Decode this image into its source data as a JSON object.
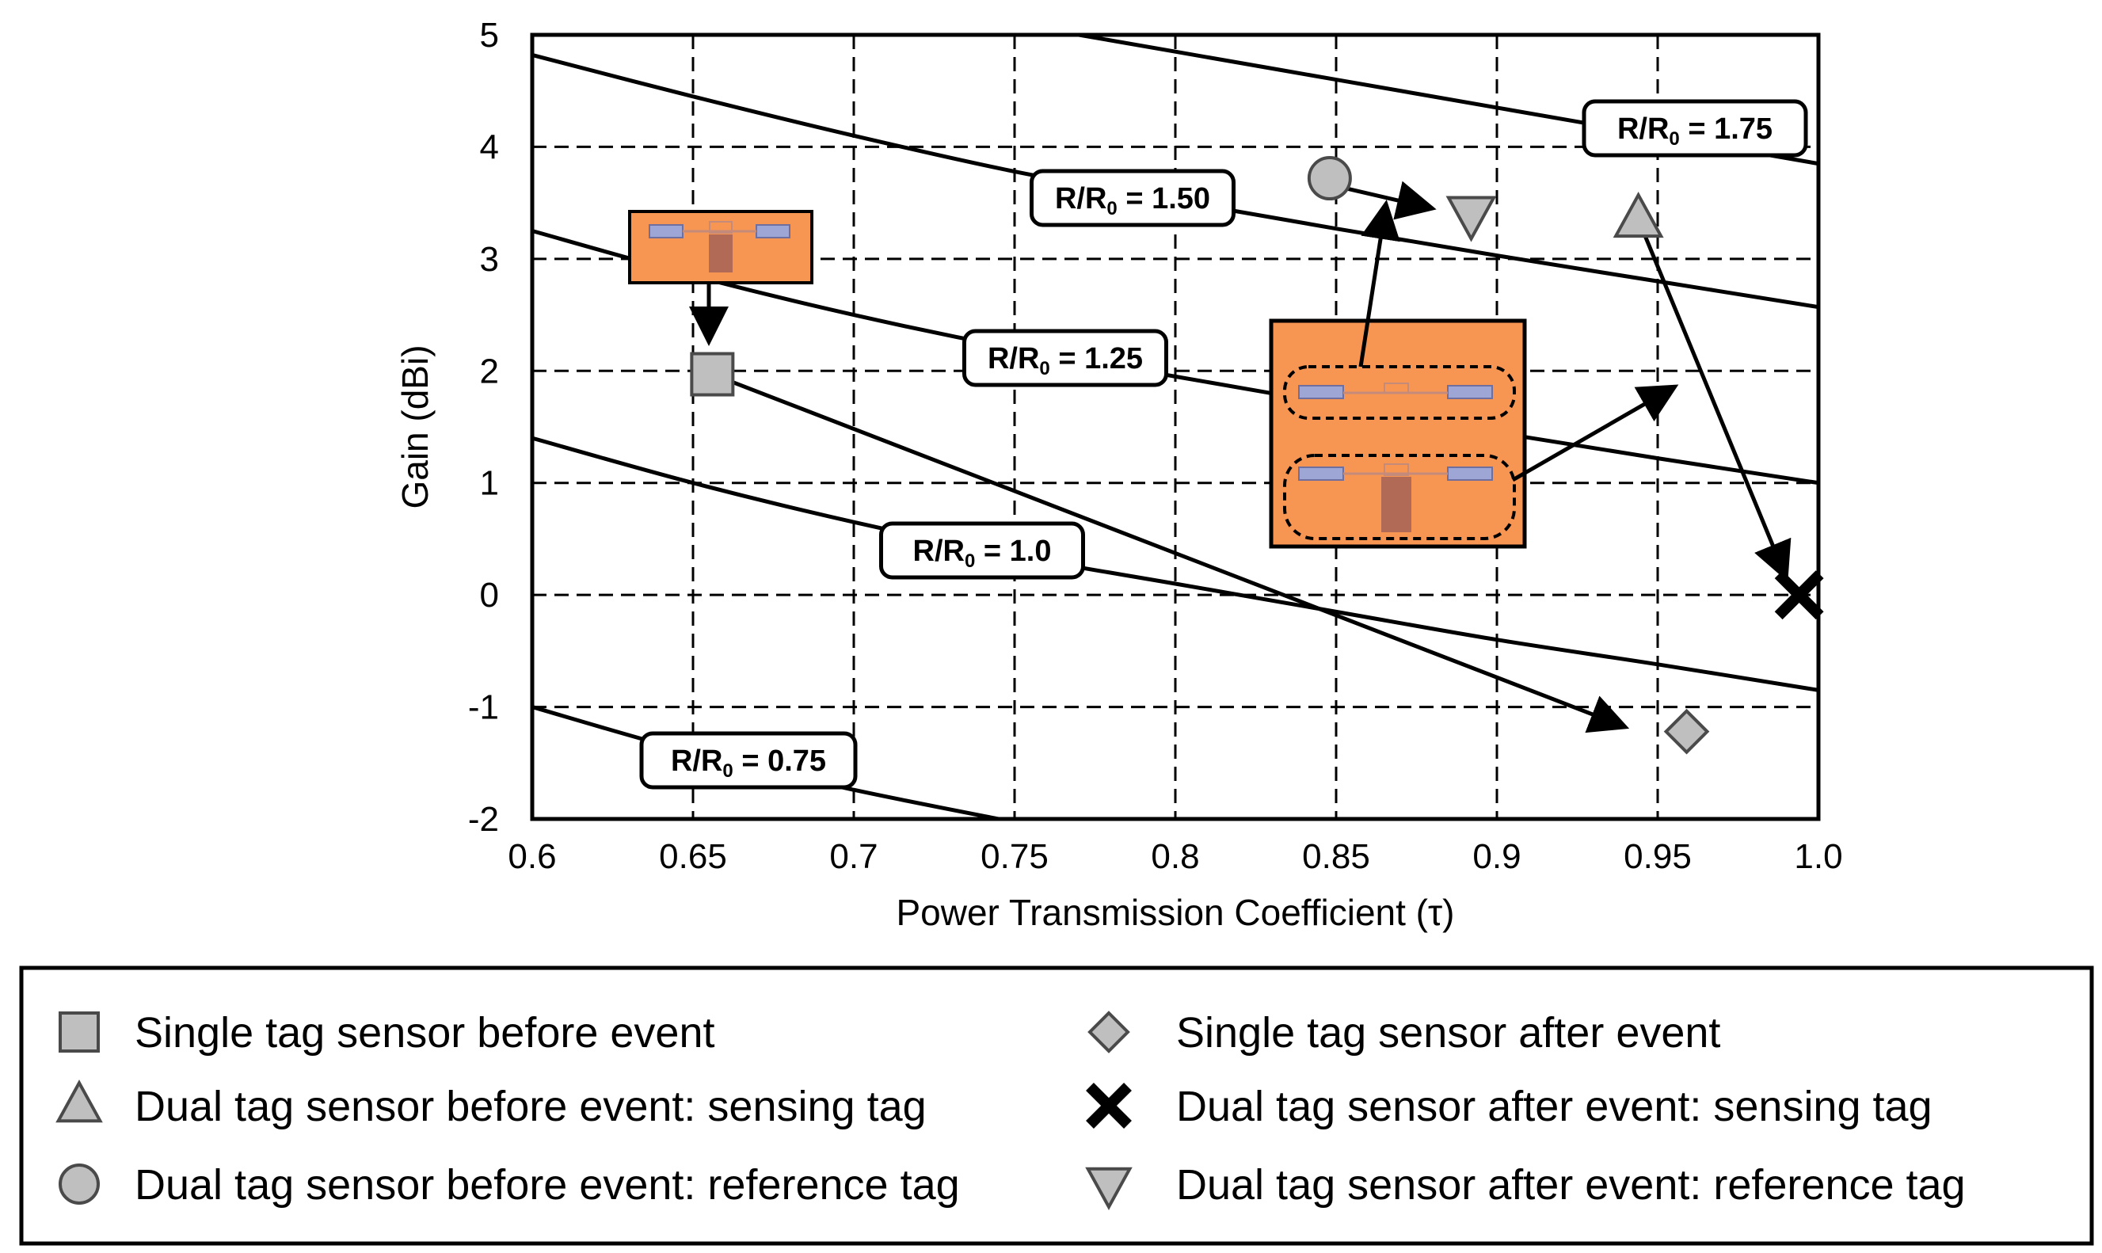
{
  "chart_data": {
    "type": "line",
    "xlabel": "Power Transmission Coefficient (τ)",
    "ylabel": "Gain (dBi)",
    "xlim": [
      0.6,
      1.0
    ],
    "ylim": [
      -2,
      5
    ],
    "xticks": [
      "0.6",
      "0.65",
      "0.7",
      "0.75",
      "0.8",
      "0.85",
      "0.9",
      "0.95",
      "1.0"
    ],
    "yticks": [
      "-2",
      "-1",
      "0",
      "1",
      "2",
      "3",
      "4",
      "5"
    ],
    "grid": true,
    "series": [
      {
        "name": "R/R0 = 0.75",
        "label_main": "R/R",
        "label_sub": "0",
        "label_value": " = 0.75",
        "x": [
          0.6,
          0.65,
          0.7,
          0.745
        ],
        "y": [
          -1.0,
          -1.41,
          -1.74,
          -2.0
        ]
      },
      {
        "name": "R/R0 = 1.0",
        "label_main": "R/R",
        "label_sub": "0",
        "label_value": " = 1.0",
        "x": [
          0.6,
          0.65,
          0.7,
          0.75,
          0.8,
          0.85,
          0.9,
          0.95,
          1.0
        ],
        "y": [
          1.4,
          1.0,
          0.65,
          0.35,
          0.1,
          -0.15,
          -0.4,
          -0.62,
          -0.85
        ]
      },
      {
        "name": "R/R0 = 1.25",
        "label_main": "R/R",
        "label_sub": "0",
        "label_value": " = 1.25",
        "x": [
          0.6,
          0.65,
          0.7,
          0.75,
          0.8,
          0.85,
          0.9,
          0.95,
          1.0
        ],
        "y": [
          3.25,
          2.85,
          2.5,
          2.2,
          1.95,
          1.7,
          1.45,
          1.22,
          1.0
        ]
      },
      {
        "name": "R/R0 = 1.50",
        "label_main": "R/R",
        "label_sub": "0",
        "label_value": " = 1.50",
        "x": [
          0.6,
          0.65,
          0.7,
          0.75,
          0.8,
          0.85,
          0.9,
          0.95,
          1.0
        ],
        "y": [
          4.82,
          4.45,
          4.1,
          3.78,
          3.52,
          3.27,
          3.03,
          2.8,
          2.57
        ]
      },
      {
        "name": "R/R0 = 1.75",
        "label_main": "R/R",
        "label_sub": "0",
        "label_value": " = 1.75",
        "x": [
          0.77,
          0.8,
          0.85,
          0.9,
          0.95,
          1.0
        ],
        "y": [
          5.0,
          4.85,
          4.6,
          4.35,
          4.1,
          3.85
        ]
      }
    ],
    "points": [
      {
        "name": "Single tag sensor before event",
        "shape": "square",
        "x": 0.656,
        "y": 1.97
      },
      {
        "name": "Single tag sensor after event",
        "shape": "diamond",
        "x": 0.959,
        "y": -1.22
      },
      {
        "name": "Dual tag sensor before event: sensing tag",
        "shape": "triangle-up",
        "x": 0.944,
        "y": 3.35
      },
      {
        "name": "Dual tag sensor after event: sensing tag",
        "shape": "x",
        "x": 0.994,
        "y": 0.0
      },
      {
        "name": "Dual tag sensor before event: reference tag",
        "shape": "circle",
        "x": 0.848,
        "y": 3.72
      },
      {
        "name": "Dual tag sensor after event: reference tag",
        "shape": "triangle-down",
        "x": 0.892,
        "y": 3.4
      }
    ],
    "arrows": [
      {
        "from": [
          0.656,
          1.97
        ],
        "to": [
          0.94,
          -1.18
        ]
      },
      {
        "from": [
          0.944,
          3.35
        ],
        "to": [
          0.99,
          0.15
        ]
      },
      {
        "from": [
          0.85,
          3.65
        ],
        "to": [
          0.88,
          3.45
        ]
      }
    ],
    "legend": {
      "placement": "bottom",
      "entries": [
        {
          "shape": "square",
          "label": "Single tag sensor before event"
        },
        {
          "shape": "triangle-up",
          "label": "Dual tag sensor before event: sensing tag"
        },
        {
          "shape": "circle",
          "label": "Dual tag sensor before event: reference tag"
        },
        {
          "shape": "diamond",
          "label": "Single tag sensor after event"
        },
        {
          "shape": "x",
          "label": "Dual tag sensor after event: sensing tag"
        },
        {
          "shape": "triangle-down",
          "label": "Dual tag sensor after event: reference tag"
        }
      ]
    }
  },
  "colors": {
    "marker_fill": "#bfbfbf",
    "tag_fill": "#f79553",
    "tag_pad": "#9ea6d6",
    "tag_stem": "#b06a55",
    "line": "#000000"
  }
}
